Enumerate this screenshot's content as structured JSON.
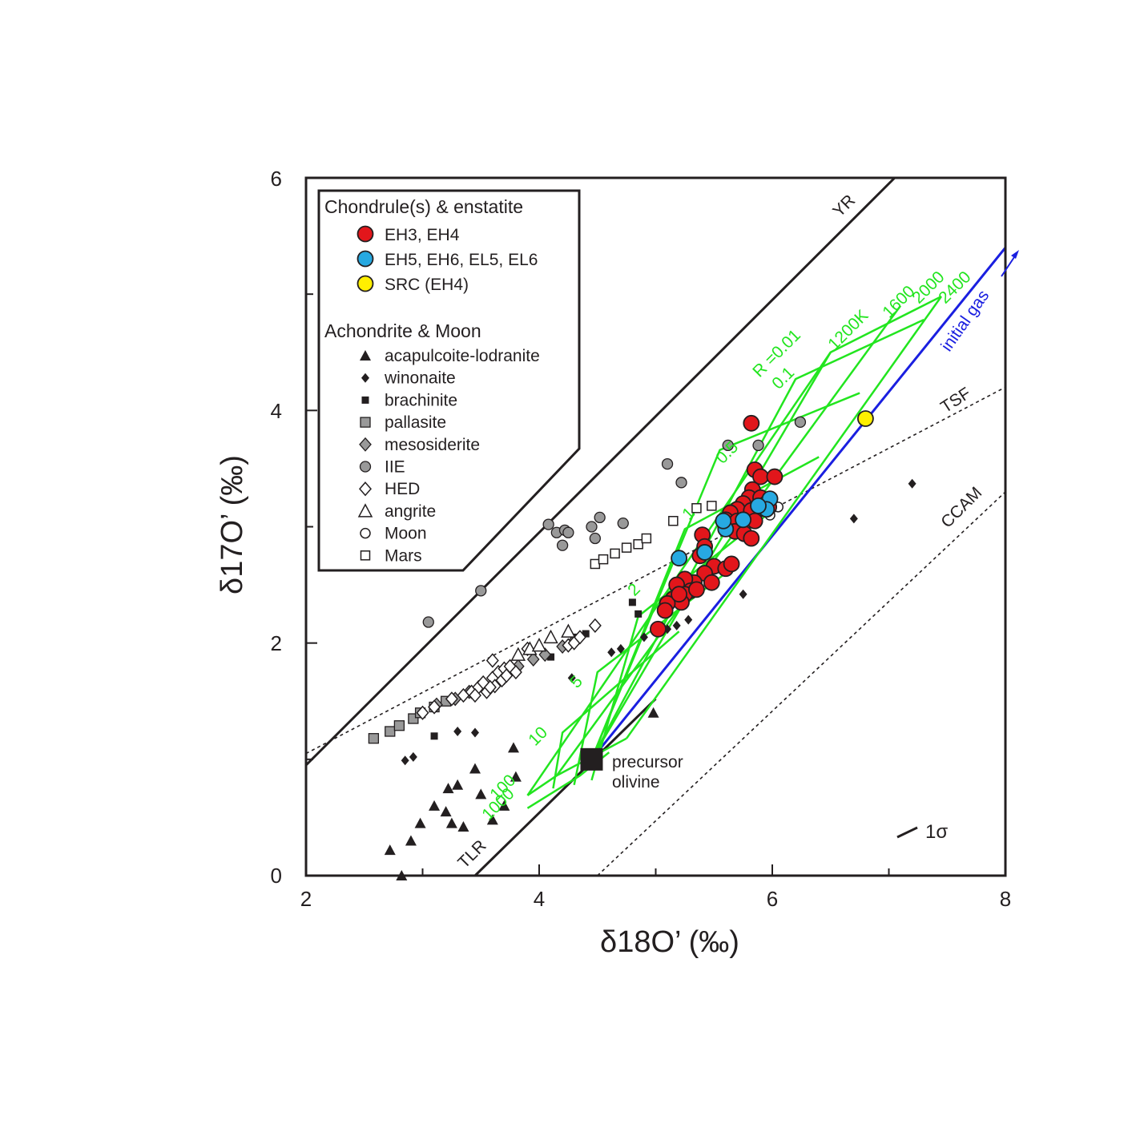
{
  "chart_data": {
    "type": "scatter",
    "xlabel": "δ18O’ (‰)",
    "ylabel": "δ17O’ (‰)",
    "xlim": [
      2,
      8
    ],
    "ylim": [
      0,
      6
    ],
    "x_ticks": [
      "2",
      "4",
      "6",
      "8"
    ],
    "y_ticks": [
      "0",
      "2",
      "4",
      "6"
    ],
    "grid": false,
    "legend_position": "top-left",
    "legend": {
      "group1_title": "Chondrule(s) & enstatite",
      "group1": [
        {
          "label": "EH3, EH4",
          "marker": "circle",
          "color": "#e2161b"
        },
        {
          "label": "EH5, EH6, EL5, EL6",
          "marker": "circle",
          "color": "#27a9e1"
        },
        {
          "label": "SRC (EH4)",
          "marker": "circle",
          "color": "#ffef00"
        }
      ],
      "group2_title": "Achondrite & Moon",
      "group2": [
        {
          "label": "acapulcoite-lodranite",
          "marker": "triangle-filled"
        },
        {
          "label": "winonaite",
          "marker": "diamond-filled-small"
        },
        {
          "label": "brachinite",
          "marker": "square-filled-small"
        },
        {
          "label": "pallasite",
          "marker": "square-gray"
        },
        {
          "label": "mesosiderite",
          "marker": "diamond-gray"
        },
        {
          "label": "IIE",
          "marker": "circle-gray"
        },
        {
          "label": "HED",
          "marker": "diamond-open"
        },
        {
          "label": "angrite",
          "marker": "triangle-open"
        },
        {
          "label": "Moon",
          "marker": "circle-open"
        },
        {
          "label": "Mars",
          "marker": "square-open"
        }
      ]
    },
    "reference_lines": [
      {
        "label": "YR",
        "style": "solid",
        "points": [
          [
            2,
            0.95
          ],
          [
            7.05,
            6
          ]
        ]
      },
      {
        "label": "TLR",
        "style": "solid",
        "points": [
          [
            3.45,
            0
          ],
          [
            5.0,
            1.52
          ]
        ]
      },
      {
        "label": "TSF",
        "style": "dotted",
        "points": [
          [
            2,
            1.05
          ],
          [
            8,
            4.2
          ]
        ]
      },
      {
        "label": "CCAM",
        "style": "dotted",
        "points": [
          [
            4.5,
            0
          ],
          [
            8,
            3.3
          ]
        ]
      },
      {
        "label": "initial gas",
        "style": "solid-blue",
        "points": [
          [
            4.45,
            1.0
          ],
          [
            8.0,
            5.4
          ]
        ]
      }
    ],
    "model_grid": {
      "color": "#22e51f",
      "R_labels": [
        "R =0.01",
        "0.1",
        "0.5",
        "1",
        "2",
        "5",
        "10",
        "100",
        "1000"
      ],
      "T_labels": [
        "1200K",
        "1600",
        "2000",
        "2400"
      ],
      "lines": [
        [
          [
            4.45,
            1.0
          ],
          [
            6.5,
            4.5
          ],
          [
            7.45,
            4.98
          ]
        ],
        [
          [
            4.45,
            1.0
          ],
          [
            6.2,
            4.27
          ],
          [
            7.3,
            4.78
          ]
        ],
        [
          [
            4.45,
            1.0
          ],
          [
            5.55,
            3.66
          ],
          [
            6.75,
            4.15
          ]
        ],
        [
          [
            4.45,
            1.0
          ],
          [
            5.25,
            2.98
          ],
          [
            6.4,
            3.6
          ]
        ],
        [
          [
            4.45,
            0.82
          ],
          [
            4.85,
            2.23
          ],
          [
            5.95,
            3.1
          ]
        ],
        [
          [
            4.3,
            0.78
          ],
          [
            4.5,
            1.75
          ],
          [
            5.65,
            2.64
          ]
        ],
        [
          [
            4.12,
            0.75
          ],
          [
            4.2,
            1.23
          ],
          [
            5.2,
            2.1
          ]
        ],
        [
          [
            3.9,
            0.69
          ],
          [
            4.15,
            0.86
          ],
          [
            4.75,
            1.18
          ]
        ],
        [
          [
            3.9,
            0.58
          ],
          [
            4.35,
            0.86
          ],
          [
            4.6,
            1.06
          ]
        ],
        [
          [
            3.9,
            0.69
          ],
          [
            6.5,
            4.5
          ]
        ],
        [
          [
            4.15,
            0.86
          ],
          [
            7.1,
            4.9
          ]
        ],
        [
          [
            4.75,
            1.18
          ],
          [
            7.45,
            4.98
          ]
        ]
      ]
    },
    "series": [
      {
        "name": "EH3, EH4",
        "marker": "circle",
        "color": "#e2161b",
        "points": [
          [
            5.82,
            3.89
          ],
          [
            5.85,
            3.49
          ],
          [
            5.9,
            3.43
          ],
          [
            6.02,
            3.43
          ],
          [
            5.83,
            3.32
          ],
          [
            5.8,
            3.25
          ],
          [
            5.9,
            3.25
          ],
          [
            5.75,
            3.2
          ],
          [
            5.7,
            3.15
          ],
          [
            5.64,
            3.12
          ],
          [
            5.6,
            3.06
          ],
          [
            5.6,
            3.0
          ],
          [
            5.7,
            3.05
          ],
          [
            5.82,
            3.14
          ],
          [
            5.85,
            3.05
          ],
          [
            5.95,
            3.2
          ],
          [
            5.97,
            3.17
          ],
          [
            5.68,
            2.96
          ],
          [
            5.76,
            2.94
          ],
          [
            5.82,
            2.9
          ],
          [
            5.4,
            2.93
          ],
          [
            5.42,
            2.83
          ],
          [
            5.38,
            2.75
          ],
          [
            5.5,
            2.66
          ],
          [
            5.6,
            2.64
          ],
          [
            5.65,
            2.68
          ],
          [
            5.42,
            2.6
          ],
          [
            5.33,
            2.52
          ],
          [
            5.25,
            2.55
          ],
          [
            5.48,
            2.52
          ],
          [
            5.18,
            2.5
          ],
          [
            5.3,
            2.45
          ],
          [
            5.25,
            2.42
          ],
          [
            5.15,
            2.38
          ],
          [
            5.22,
            2.35
          ],
          [
            5.1,
            2.34
          ],
          [
            5.08,
            2.28
          ],
          [
            5.02,
            2.12
          ],
          [
            5.2,
            2.42
          ],
          [
            5.35,
            2.46
          ]
        ]
      },
      {
        "name": "EH5, EH6, EL5, EL6",
        "marker": "circle",
        "color": "#27a9e1",
        "points": [
          [
            5.2,
            2.73
          ],
          [
            5.42,
            2.78
          ],
          [
            5.6,
            2.98
          ],
          [
            5.98,
            3.24
          ],
          [
            5.95,
            3.15
          ],
          [
            5.58,
            3.05
          ],
          [
            5.88,
            3.18
          ],
          [
            5.75,
            3.06
          ]
        ]
      },
      {
        "name": "SRC (EH4)",
        "marker": "circle",
        "color": "#ffef00",
        "points": [
          [
            6.8,
            3.93
          ]
        ]
      },
      {
        "name": "acapulcoite-lodranite",
        "marker": "triangle-filled",
        "points": [
          [
            2.72,
            0.22
          ],
          [
            2.82,
            0.0
          ],
          [
            2.9,
            0.3
          ],
          [
            2.98,
            0.45
          ],
          [
            3.1,
            0.6
          ],
          [
            3.2,
            0.55
          ],
          [
            3.22,
            0.75
          ],
          [
            3.25,
            0.45
          ],
          [
            3.3,
            0.78
          ],
          [
            3.35,
            0.42
          ],
          [
            3.45,
            0.92
          ],
          [
            3.5,
            0.7
          ],
          [
            3.6,
            0.48
          ],
          [
            3.7,
            0.6
          ],
          [
            3.78,
            1.1
          ],
          [
            3.8,
            0.85
          ],
          [
            4.98,
            1.4
          ]
        ]
      },
      {
        "name": "winonaite",
        "marker": "diamond-filled-small",
        "points": [
          [
            2.85,
            0.99
          ],
          [
            2.92,
            1.02
          ],
          [
            3.3,
            1.24
          ],
          [
            3.45,
            1.23
          ],
          [
            4.28,
            1.7
          ],
          [
            4.62,
            1.92
          ],
          [
            4.7,
            1.95
          ],
          [
            4.9,
            2.05
          ],
          [
            5.1,
            2.12
          ],
          [
            5.18,
            2.15
          ],
          [
            5.28,
            2.2
          ],
          [
            5.75,
            2.42
          ],
          [
            6.7,
            3.07
          ],
          [
            7.2,
            3.37
          ]
        ]
      },
      {
        "name": "brachinite",
        "marker": "square-filled-small",
        "points": [
          [
            3.1,
            1.2
          ],
          [
            4.1,
            1.88
          ],
          [
            4.3,
            2.05
          ],
          [
            4.4,
            2.08
          ],
          [
            4.8,
            2.35
          ],
          [
            4.85,
            2.25
          ]
        ]
      },
      {
        "name": "pallasite",
        "marker": "square-gray",
        "points": [
          [
            2.58,
            1.18
          ],
          [
            2.72,
            1.24
          ],
          [
            2.8,
            1.29
          ],
          [
            2.92,
            1.35
          ],
          [
            2.98,
            1.4
          ],
          [
            3.1,
            1.45
          ],
          [
            3.2,
            1.5
          ]
        ]
      },
      {
        "name": "mesosiderite",
        "marker": "diamond-gray",
        "points": [
          [
            3.12,
            1.47
          ],
          [
            3.28,
            1.52
          ],
          [
            3.4,
            1.58
          ],
          [
            3.55,
            1.62
          ],
          [
            3.7,
            1.7
          ],
          [
            3.82,
            1.8
          ],
          [
            3.95,
            1.86
          ],
          [
            4.05,
            1.9
          ],
          [
            4.2,
            1.97
          ],
          [
            4.3,
            2.02
          ]
        ]
      },
      {
        "name": "IIE",
        "marker": "circle-gray",
        "points": [
          [
            3.05,
            2.18
          ],
          [
            3.5,
            2.45
          ],
          [
            4.08,
            3.02
          ],
          [
            4.15,
            2.95
          ],
          [
            4.2,
            2.84
          ],
          [
            4.22,
            2.97
          ],
          [
            4.25,
            2.95
          ],
          [
            4.45,
            3.0
          ],
          [
            4.48,
            2.9
          ],
          [
            4.52,
            3.08
          ],
          [
            4.72,
            3.03
          ],
          [
            5.1,
            3.54
          ],
          [
            5.22,
            3.38
          ],
          [
            5.62,
            3.7
          ],
          [
            5.88,
            3.7
          ],
          [
            6.24,
            3.9
          ]
        ]
      },
      {
        "name": "HED",
        "marker": "diamond-open",
        "points": [
          [
            3.0,
            1.4
          ],
          [
            3.1,
            1.45
          ],
          [
            3.25,
            1.52
          ],
          [
            3.35,
            1.55
          ],
          [
            3.42,
            1.58
          ],
          [
            3.48,
            1.62
          ],
          [
            3.52,
            1.66
          ],
          [
            3.55,
            1.58
          ],
          [
            3.6,
            1.7
          ],
          [
            3.62,
            1.63
          ],
          [
            3.65,
            1.75
          ],
          [
            3.68,
            1.68
          ],
          [
            3.7,
            1.78
          ],
          [
            3.72,
            1.72
          ],
          [
            3.75,
            1.8
          ],
          [
            3.6,
            1.85
          ],
          [
            3.8,
            1.75
          ],
          [
            3.9,
            1.95
          ],
          [
            4.25,
            1.98
          ],
          [
            4.3,
            2.0
          ],
          [
            4.35,
            2.05
          ],
          [
            4.48,
            2.15
          ],
          [
            3.58,
            1.62
          ],
          [
            3.45,
            1.55
          ]
        ]
      },
      {
        "name": "angrite",
        "marker": "triangle-open",
        "points": [
          [
            3.82,
            1.9
          ],
          [
            3.92,
            1.95
          ],
          [
            4.0,
            1.98
          ],
          [
            4.1,
            2.05
          ],
          [
            4.25,
            2.1
          ]
        ]
      },
      {
        "name": "Moon",
        "marker": "circle-open",
        "points": [
          [
            5.98,
            3.1
          ],
          [
            6.05,
            3.17
          ],
          [
            5.9,
            3.13
          ]
        ]
      },
      {
        "name": "Mars",
        "marker": "square-open",
        "points": [
          [
            4.48,
            2.68
          ],
          [
            4.55,
            2.72
          ],
          [
            4.65,
            2.77
          ],
          [
            4.75,
            2.82
          ],
          [
            4.85,
            2.85
          ],
          [
            4.92,
            2.9
          ],
          [
            5.15,
            3.05
          ],
          [
            5.35,
            3.16
          ],
          [
            5.48,
            3.18
          ]
        ]
      }
    ],
    "annotations": {
      "precursor_line1": "precursor",
      "precursor_line2": "olivine",
      "precursor_point": [
        4.45,
        1.0
      ],
      "sigma_label": "1σ",
      "initial_gas_label": "initial gas"
    }
  }
}
